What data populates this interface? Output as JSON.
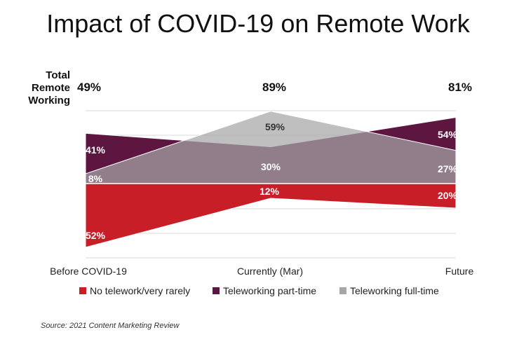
{
  "title": "Impact of COVID-19 on Remote Work",
  "total_label": [
    "Total",
    "Remote",
    "Working"
  ],
  "source": "Source: 2021 Content Marketing Review",
  "chart_data": {
    "type": "area",
    "categories": [
      "Before COVID-19",
      "Currently (Mar)",
      "Future"
    ],
    "title": "Impact of COVID-19 on Remote Work",
    "totals": [
      "49%",
      "89%",
      "81%"
    ],
    "series": [
      {
        "name": "No telework/very rarely",
        "values": [
          -52,
          -12,
          -20
        ],
        "labels": [
          "52%",
          "12%",
          "20%"
        ],
        "color": "#c81e27"
      },
      {
        "name": "Teleworking part-time",
        "values": [
          41,
          30,
          54
        ],
        "labels": [
          "41%",
          "30%",
          "54%"
        ],
        "color": "#5c1640"
      },
      {
        "name": "Teleworking full-time",
        "values": [
          8,
          59,
          27
        ],
        "labels": [
          "8%",
          "59%",
          "27%"
        ],
        "color": "#a6a6a6"
      }
    ],
    "legend_position": "bottom",
    "grid": true
  }
}
